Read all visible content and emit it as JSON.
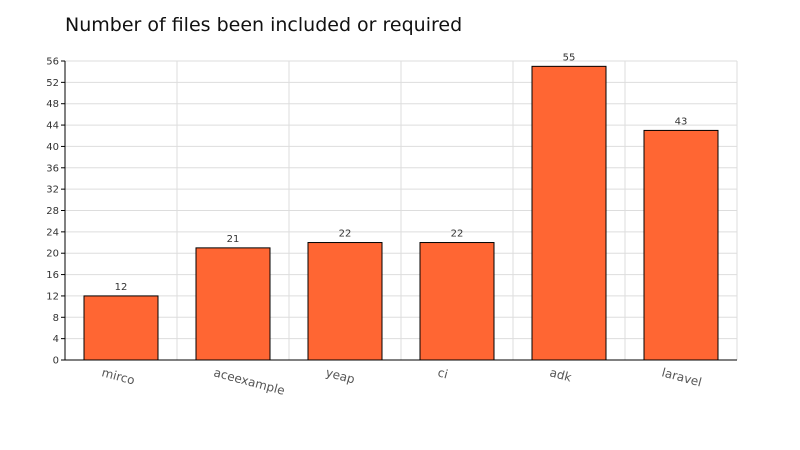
{
  "chart_data": {
    "type": "bar",
    "title": "Number of files been included or required",
    "categories": [
      "mirco",
      "aceexample",
      "yeap",
      "ci",
      "adk",
      "laravel"
    ],
    "values": [
      12,
      21,
      22,
      22,
      55,
      43
    ],
    "xlabel": "",
    "ylabel": "",
    "ylim": [
      0,
      56
    ],
    "ytick_step": 4,
    "grid": true,
    "legend": "none",
    "colors": {
      "bar": "#ff6633",
      "bar_stroke": "#000000",
      "grid": "#dddddd",
      "axis": "#000000"
    }
  }
}
